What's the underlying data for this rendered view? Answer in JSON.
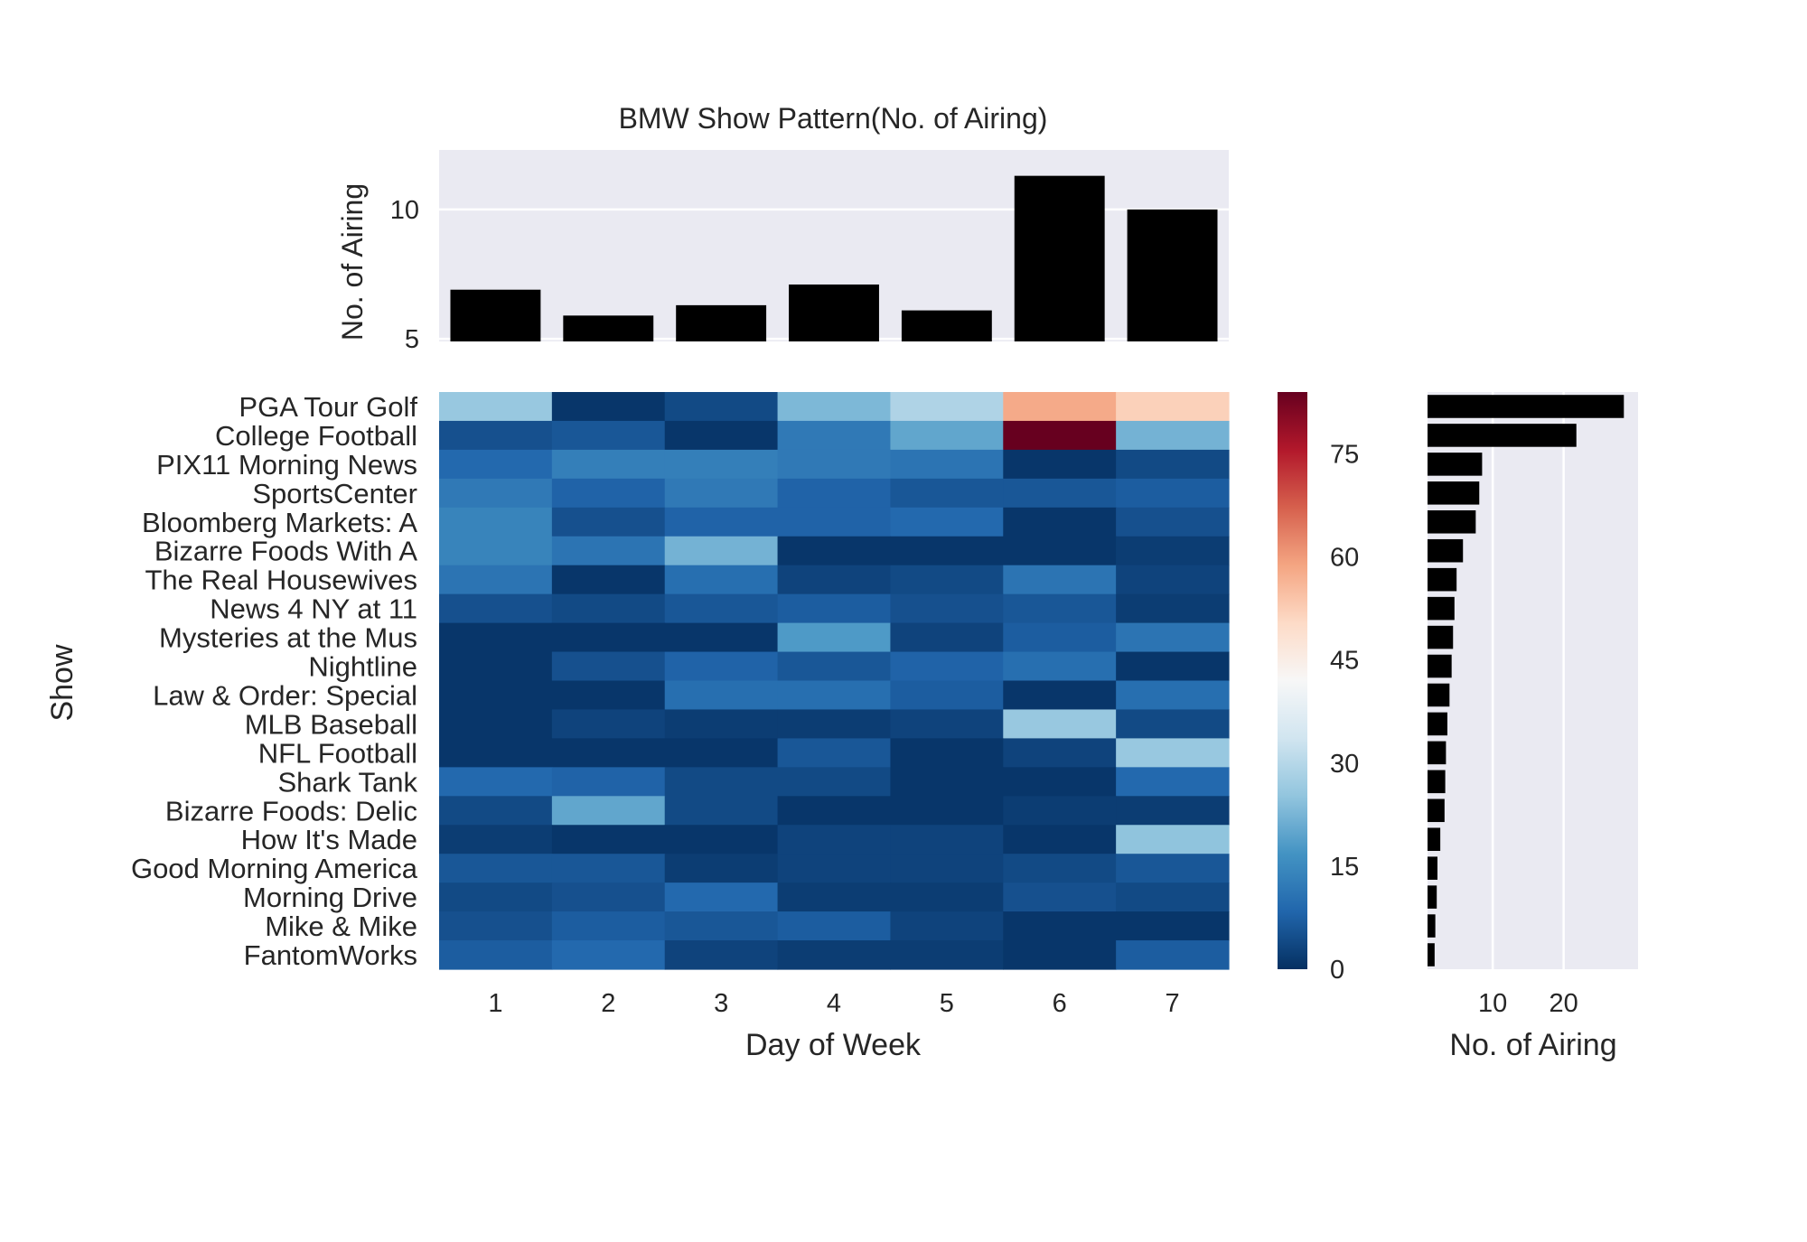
{
  "chart_data": [
    {
      "id": "top",
      "type": "bar",
      "title": "BMW Show Pattern(No. of Airing)",
      "xlabel": "",
      "ylabel": "No. of Airing",
      "categories": [
        "1",
        "2",
        "3",
        "4",
        "5",
        "6",
        "7"
      ],
      "values": [
        6.9,
        5.9,
        6.3,
        7.1,
        6.1,
        11.3,
        10.0
      ],
      "ylim": [
        4.9,
        12.3
      ],
      "yticks": [
        5,
        10
      ],
      "grid": true,
      "bar_color": "#000000",
      "background": "#eaeaf2"
    },
    {
      "id": "heatmap",
      "type": "heatmap",
      "xlabel": "Day of Week",
      "ylabel": "Show",
      "x": [
        "1",
        "2",
        "3",
        "4",
        "5",
        "6",
        "7"
      ],
      "y": [
        "PGA Tour Golf",
        "College Football",
        "PIX11 Morning News",
        "SportsCenter",
        "Bloomberg Markets: A",
        "Bizarre Foods With A",
        "The Real Housewives ",
        "News 4 NY at 11",
        "Mysteries at the Mus",
        "Nightline",
        "Law & Order: Special",
        "MLB Baseball",
        "NFL Football",
        "Shark Tank",
        "Bizarre Foods: Delic",
        "How It's Made",
        "Good Morning America",
        "Morning Drive",
        "Mike & Mike",
        "FantomWorks"
      ],
      "values": [
        [
          26,
          1,
          4,
          23,
          29,
          58,
          52
        ],
        [
          5,
          6,
          1,
          12,
          20,
          84,
          22
        ],
        [
          9,
          13,
          13,
          12,
          11,
          1,
          4
        ],
        [
          12,
          8,
          12,
          8,
          6,
          6,
          7
        ],
        [
          14,
          5,
          8,
          8,
          9,
          1,
          5
        ],
        [
          14,
          11,
          22,
          1,
          1,
          1,
          2
        ],
        [
          11,
          1,
          10,
          3,
          4,
          11,
          3
        ],
        [
          5,
          4,
          6,
          7,
          5,
          6,
          2
        ],
        [
          1,
          1,
          1,
          18,
          3,
          7,
          11
        ],
        [
          1,
          5,
          8,
          6,
          8,
          10,
          1
        ],
        [
          1,
          1,
          10,
          10,
          7,
          1,
          10
        ],
        [
          1,
          3,
          2,
          2,
          3,
          26,
          4
        ],
        [
          1,
          1,
          1,
          6,
          1,
          3,
          26
        ],
        [
          9,
          8,
          4,
          4,
          1,
          1,
          9
        ],
        [
          4,
          20,
          4,
          1,
          1,
          2,
          2
        ],
        [
          2,
          1,
          1,
          3,
          3,
          1,
          25
        ],
        [
          6,
          6,
          2,
          3,
          3,
          4,
          6
        ],
        [
          4,
          5,
          9,
          2,
          2,
          5,
          4
        ],
        [
          5,
          7,
          6,
          7,
          3,
          1,
          1
        ],
        [
          7,
          9,
          3,
          2,
          2,
          1,
          7
        ]
      ],
      "colormap": "RdBu_r",
      "vmin": 0,
      "vmax": 84,
      "colorbar_ticks": [
        0,
        15,
        30,
        45,
        60,
        75
      ]
    },
    {
      "id": "right",
      "type": "bar",
      "orientation": "horizontal",
      "xlabel": "No. of Airing",
      "ylabel": "",
      "categories": [
        "PGA Tour Golf",
        "College Football",
        "PIX11 Morning News",
        "SportsCenter",
        "Bloomberg Markets: A",
        "Bizarre Foods With A",
        "The Real Housewives ",
        "News 4 NY at 11",
        "Mysteries at the Mus",
        "Nightline",
        "Law & Order: Special",
        "MLB Baseball",
        "NFL Football",
        "Shark Tank",
        "Bizarre Foods: Delic",
        "How It's Made",
        "Good Morning America",
        "Morning Drive",
        "Mike & Mike",
        "FantomWorks"
      ],
      "values": [
        28.5,
        21.8,
        8.5,
        8.1,
        7.6,
        5.8,
        4.9,
        4.6,
        4.4,
        4.2,
        3.9,
        3.6,
        3.4,
        3.3,
        3.2,
        2.6,
        2.2,
        2.1,
        1.9,
        1.8
      ],
      "xlim": [
        0.8,
        30.5
      ],
      "xticks": [
        10,
        20
      ],
      "grid": true,
      "bar_color": "#000000",
      "background": "#eaeaf2"
    }
  ]
}
